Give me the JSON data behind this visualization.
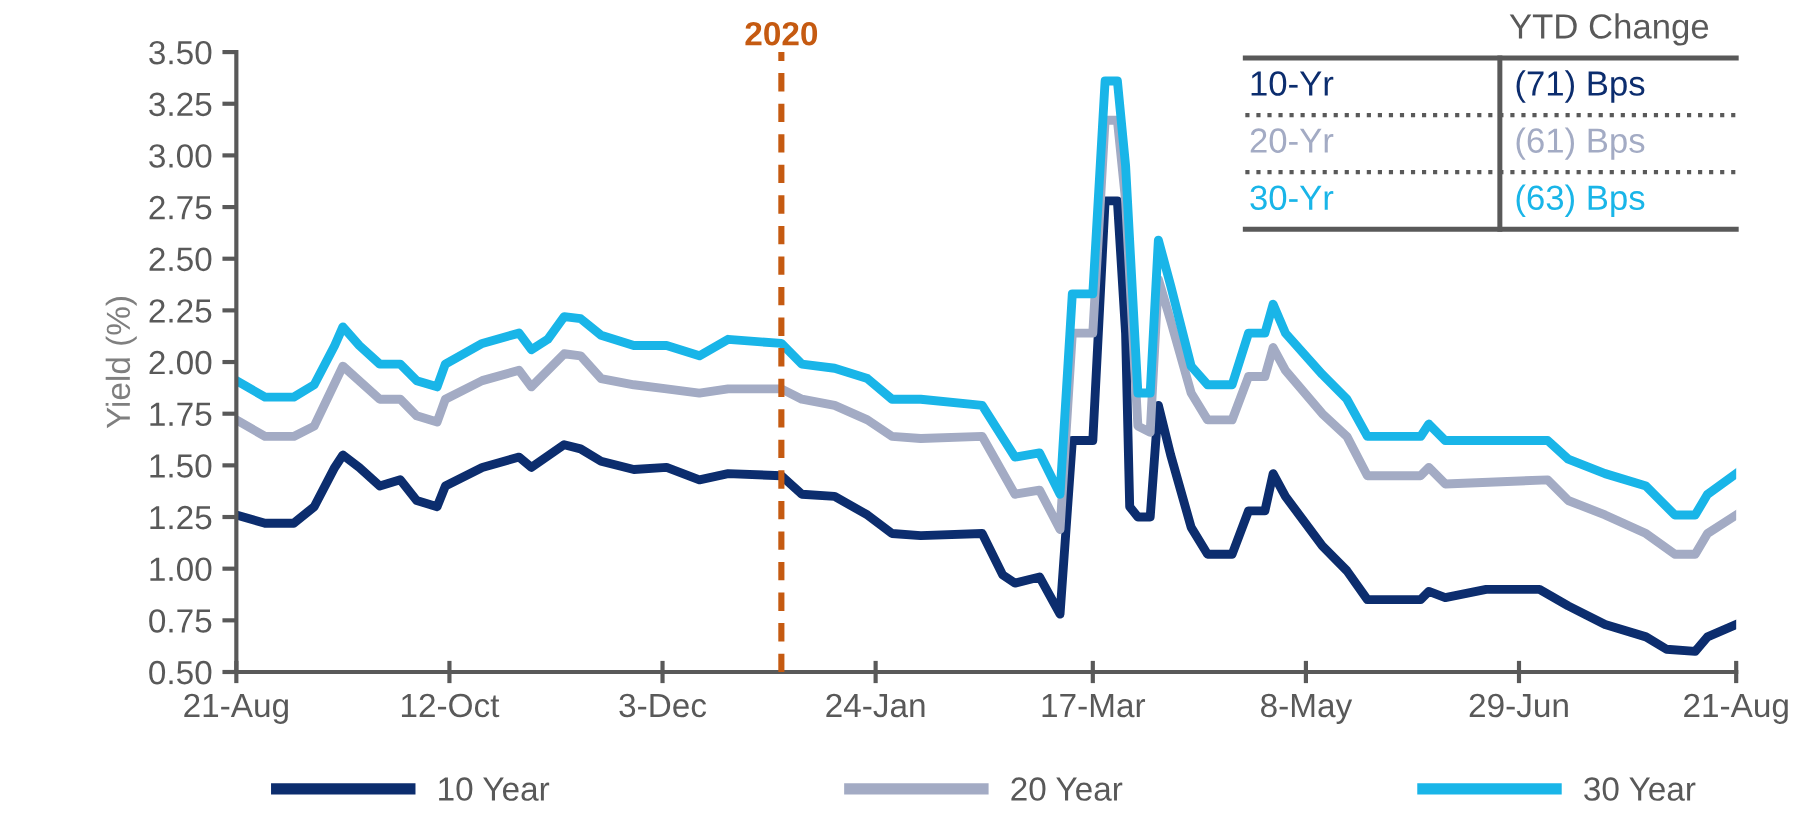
{
  "chart_data": {
    "type": "line",
    "ylabel": "Yield (%)",
    "ylim": [
      0.5,
      3.5
    ],
    "yticks": [
      {
        "value": 0.5,
        "label": "0.50"
      },
      {
        "value": 0.75,
        "label": "0.75"
      },
      {
        "value": 1.0,
        "label": "1.00"
      },
      {
        "value": 1.25,
        "label": "1.25"
      },
      {
        "value": 1.5,
        "label": "1.50"
      },
      {
        "value": 1.75,
        "label": "1.75"
      },
      {
        "value": 2.0,
        "label": "2.00"
      },
      {
        "value": 2.25,
        "label": "2.25"
      },
      {
        "value": 2.5,
        "label": "2.50"
      },
      {
        "value": 2.75,
        "label": "2.75"
      },
      {
        "value": 3.0,
        "label": "3.00"
      },
      {
        "value": 3.25,
        "label": "3.25"
      },
      {
        "value": 3.5,
        "label": "3.50"
      }
    ],
    "xlim": [
      "2019-08-21",
      "2020-08-21"
    ],
    "xticks": [
      {
        "value": "2019-08-21",
        "label": "21-Aug"
      },
      {
        "value": "2019-10-12",
        "label": "12-Oct"
      },
      {
        "value": "2019-12-03",
        "label": "3-Dec"
      },
      {
        "value": "2020-01-24",
        "label": "24-Jan"
      },
      {
        "value": "2020-03-17",
        "label": "17-Mar"
      },
      {
        "value": "2020-05-08",
        "label": "8-May"
      },
      {
        "value": "2020-06-29",
        "label": "29-Jun"
      },
      {
        "value": "2020-08-21",
        "label": "21-Aug"
      }
    ],
    "grid": false,
    "legend": "bottom",
    "marker": "none",
    "line_style": "solid",
    "series": [
      {
        "name": "10 Year",
        "color": "#0c2d6e",
        "x": [
          "2019-08-21",
          "2019-08-28",
          "2019-09-04",
          "2019-09-09",
          "2019-09-14",
          "2019-09-16",
          "2019-09-20",
          "2019-09-25",
          "2019-09-30",
          "2019-10-04",
          "2019-10-09",
          "2019-10-11",
          "2019-10-20",
          "2019-10-29",
          "2019-11-01",
          "2019-11-09",
          "2019-11-13",
          "2019-11-18",
          "2019-11-26",
          "2019-12-04",
          "2019-12-12",
          "2019-12-19",
          "2020-01-01",
          "2020-01-06",
          "2020-01-14",
          "2020-01-22",
          "2020-01-28",
          "2020-02-04",
          "2020-02-19",
          "2020-02-24",
          "2020-02-27",
          "2020-03-04",
          "2020-03-09",
          "2020-03-12",
          "2020-03-17",
          "2020-03-20",
          "2020-03-23",
          "2020-03-25",
          "2020-03-26",
          "2020-03-28",
          "2020-03-31",
          "2020-04-02",
          "2020-04-05",
          "2020-04-10",
          "2020-04-14",
          "2020-04-20",
          "2020-04-24",
          "2020-04-28",
          "2020-04-30",
          "2020-05-03",
          "2020-05-12",
          "2020-05-18",
          "2020-05-23",
          "2020-06-05",
          "2020-06-07",
          "2020-06-11",
          "2020-06-21",
          "2020-07-04",
          "2020-07-11",
          "2020-07-20",
          "2020-07-30",
          "2020-08-04",
          "2020-08-11",
          "2020-08-14",
          "2020-08-21"
        ],
        "values": [
          1.26,
          1.22,
          1.22,
          1.3,
          1.49,
          1.55,
          1.49,
          1.4,
          1.43,
          1.33,
          1.3,
          1.4,
          1.49,
          1.54,
          1.49,
          1.6,
          1.58,
          1.52,
          1.48,
          1.49,
          1.43,
          1.46,
          1.45,
          1.36,
          1.35,
          1.26,
          1.17,
          1.16,
          1.17,
          0.97,
          0.93,
          0.96,
          0.78,
          1.62,
          1.62,
          2.78,
          2.78,
          2.14,
          1.3,
          1.25,
          1.25,
          1.79,
          1.55,
          1.2,
          1.07,
          1.07,
          1.28,
          1.28,
          1.46,
          1.35,
          1.11,
          0.99,
          0.85,
          0.85,
          0.89,
          0.86,
          0.9,
          0.9,
          0.82,
          0.73,
          0.67,
          0.61,
          0.6,
          0.67,
          0.73
        ]
      },
      {
        "name": "20 Year",
        "color": "#a3abc4",
        "x": [
          "2019-08-21",
          "2019-08-28",
          "2019-09-04",
          "2019-09-09",
          "2019-09-16",
          "2019-09-25",
          "2019-09-30",
          "2019-10-04",
          "2019-10-09",
          "2019-10-11",
          "2019-10-20",
          "2019-10-29",
          "2019-11-01",
          "2019-11-09",
          "2019-11-13",
          "2019-11-18",
          "2019-11-26",
          "2019-12-04",
          "2019-12-12",
          "2019-12-19",
          "2020-01-01",
          "2020-01-06",
          "2020-01-14",
          "2020-01-22",
          "2020-01-28",
          "2020-02-04",
          "2020-02-19",
          "2020-02-27",
          "2020-03-04",
          "2020-03-09",
          "2020-03-12",
          "2020-03-17",
          "2020-03-20",
          "2020-03-23",
          "2020-03-25",
          "2020-03-28",
          "2020-03-31",
          "2020-04-02",
          "2020-04-05",
          "2020-04-10",
          "2020-04-14",
          "2020-04-20",
          "2020-04-24",
          "2020-04-28",
          "2020-04-30",
          "2020-05-03",
          "2020-05-12",
          "2020-05-18",
          "2020-05-23",
          "2020-06-05",
          "2020-06-07",
          "2020-06-11",
          "2020-07-06",
          "2020-07-11",
          "2020-07-20",
          "2020-07-30",
          "2020-08-06",
          "2020-08-11",
          "2020-08-14",
          "2020-08-21"
        ],
        "values": [
          1.72,
          1.64,
          1.64,
          1.69,
          1.98,
          1.82,
          1.82,
          1.74,
          1.71,
          1.82,
          1.91,
          1.96,
          1.88,
          2.04,
          2.03,
          1.92,
          1.89,
          1.87,
          1.85,
          1.87,
          1.87,
          1.82,
          1.79,
          1.72,
          1.64,
          1.63,
          1.64,
          1.36,
          1.38,
          1.19,
          2.14,
          2.14,
          3.17,
          3.17,
          2.78,
          1.69,
          1.66,
          2.4,
          2.2,
          1.85,
          1.72,
          1.72,
          1.93,
          1.93,
          2.07,
          1.96,
          1.75,
          1.64,
          1.45,
          1.45,
          1.49,
          1.41,
          1.43,
          1.33,
          1.26,
          1.17,
          1.07,
          1.07,
          1.17,
          1.26
        ]
      },
      {
        "name": "30 Year",
        "color": "#19b5e8",
        "x": [
          "2019-08-21",
          "2019-08-28",
          "2019-09-04",
          "2019-09-09",
          "2019-09-14",
          "2019-09-16",
          "2019-09-20",
          "2019-09-25",
          "2019-09-30",
          "2019-10-04",
          "2019-10-09",
          "2019-10-11",
          "2019-10-20",
          "2019-10-29",
          "2019-11-01",
          "2019-11-05",
          "2019-11-09",
          "2019-11-13",
          "2019-11-18",
          "2019-11-26",
          "2019-12-04",
          "2019-12-12",
          "2019-12-19",
          "2020-01-01",
          "2020-01-06",
          "2020-01-14",
          "2020-01-22",
          "2020-01-28",
          "2020-02-04",
          "2020-02-19",
          "2020-02-27",
          "2020-03-04",
          "2020-03-09",
          "2020-03-12",
          "2020-03-17",
          "2020-03-20",
          "2020-03-23",
          "2020-03-25",
          "2020-03-28",
          "2020-03-31",
          "2020-04-02",
          "2020-04-05",
          "2020-04-10",
          "2020-04-14",
          "2020-04-20",
          "2020-04-24",
          "2020-04-28",
          "2020-04-30",
          "2020-05-03",
          "2020-05-12",
          "2020-05-18",
          "2020-05-23",
          "2020-06-05",
          "2020-06-07",
          "2020-06-11",
          "2020-07-06",
          "2020-07-11",
          "2020-07-20",
          "2020-07-30",
          "2020-08-06",
          "2020-08-11",
          "2020-08-14",
          "2020-08-21"
        ],
        "values": [
          1.91,
          1.83,
          1.83,
          1.89,
          2.08,
          2.17,
          2.08,
          1.99,
          1.99,
          1.91,
          1.88,
          1.99,
          2.09,
          2.14,
          2.06,
          2.11,
          2.22,
          2.21,
          2.13,
          2.08,
          2.08,
          2.03,
          2.11,
          2.09,
          1.99,
          1.97,
          1.92,
          1.82,
          1.82,
          1.79,
          1.54,
          1.56,
          1.36,
          2.33,
          2.33,
          3.36,
          3.36,
          2.95,
          1.85,
          1.85,
          2.59,
          2.37,
          1.98,
          1.89,
          1.89,
          2.14,
          2.14,
          2.28,
          2.14,
          1.94,
          1.82,
          1.64,
          1.64,
          1.7,
          1.62,
          1.62,
          1.53,
          1.46,
          1.4,
          1.26,
          1.26,
          1.36,
          1.46
        ]
      }
    ],
    "ref_lines": [
      {
        "axis": "x",
        "value": "2020-01-01",
        "label": "2020",
        "color": "#c55a11",
        "line_style": "dashed"
      }
    ],
    "annotations": [
      "YTD Change",
      "10-Yr",
      "(71) Bps",
      "20-Yr",
      "(61) Bps",
      "30-Yr",
      "(63) Bps"
    ]
  }
}
